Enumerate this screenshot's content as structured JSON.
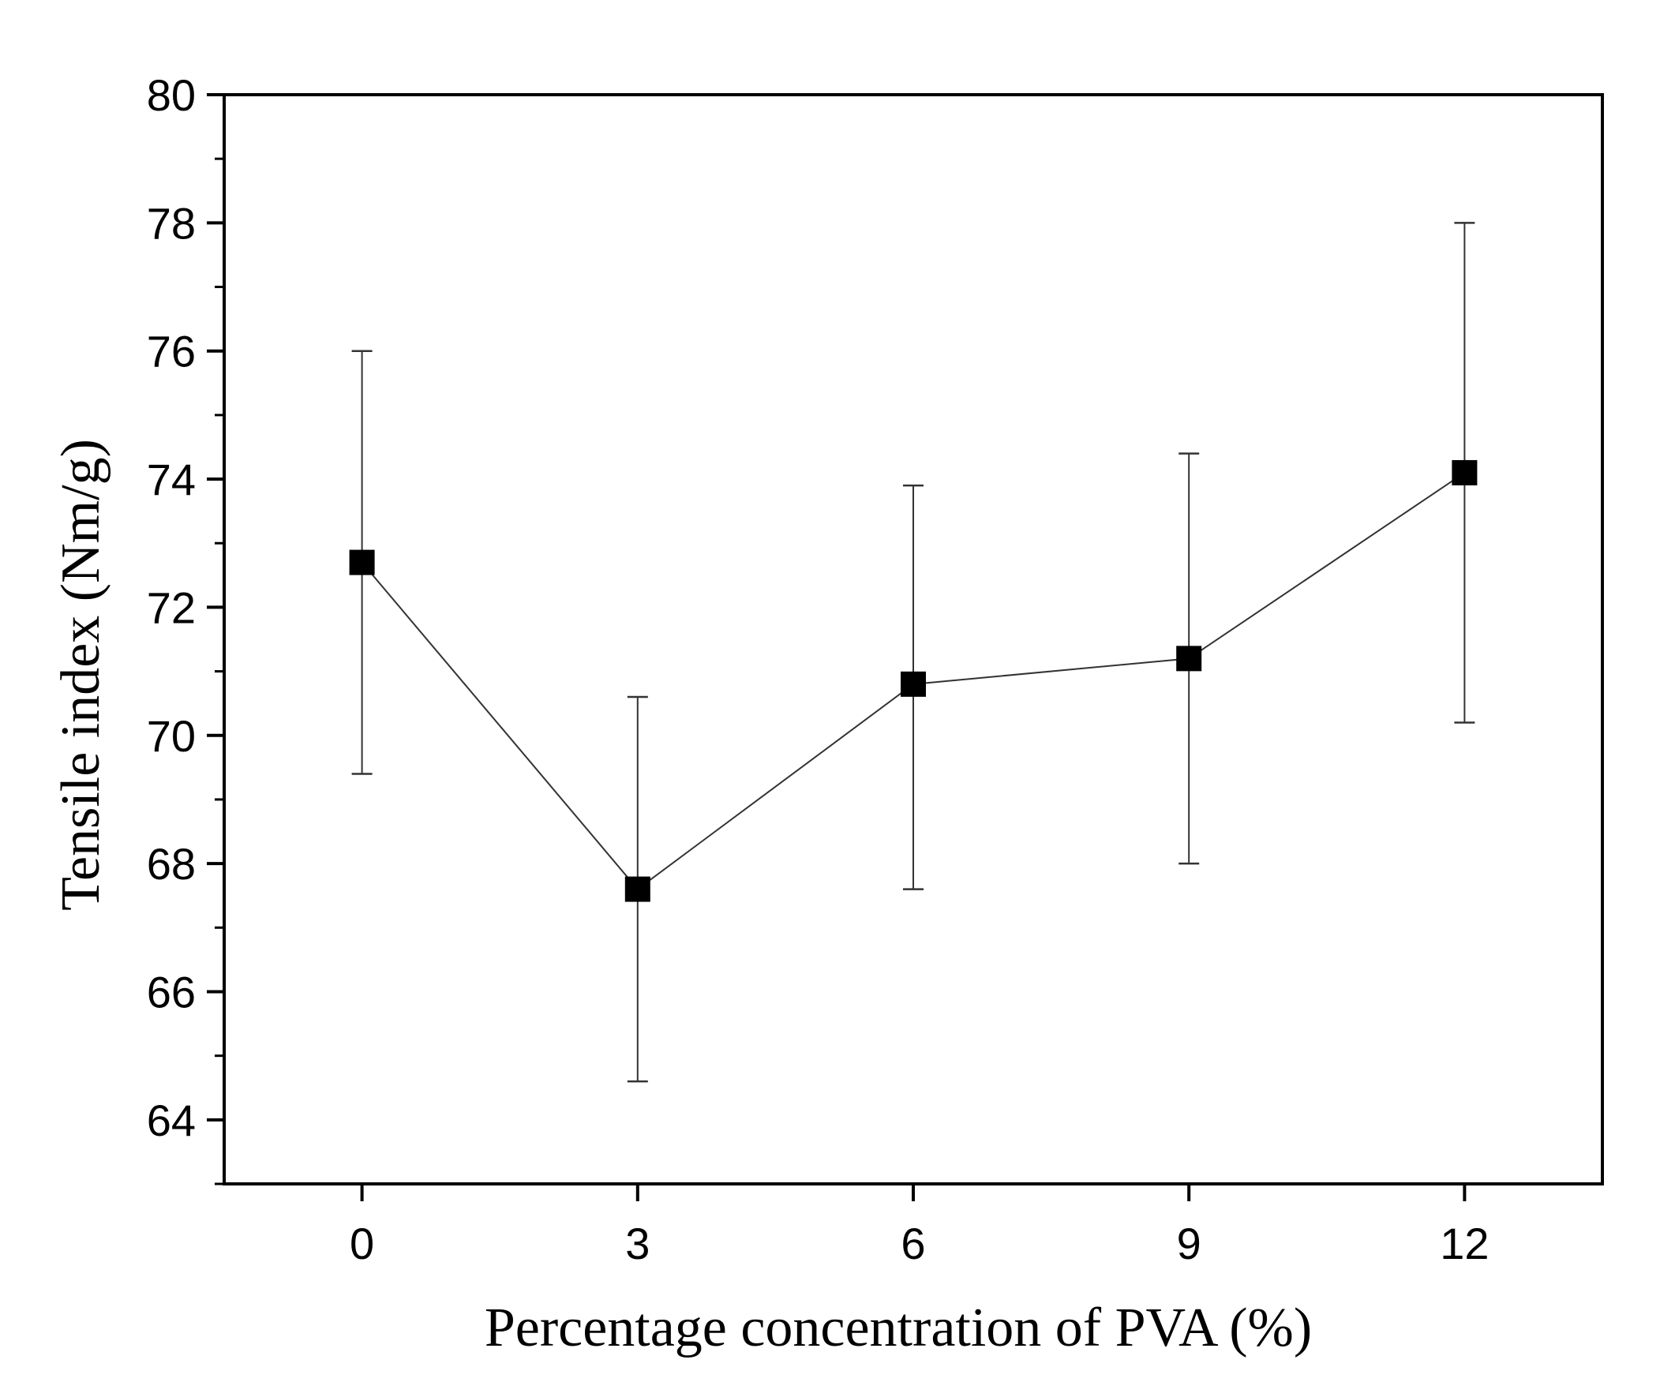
{
  "chart_data": {
    "type": "line",
    "title": "",
    "xlabel": "Percentage concentration of PVA (%)",
    "ylabel": "Tensile index (Nm/g)",
    "x": [
      0,
      3,
      6,
      9,
      12
    ],
    "series": [
      {
        "name": "Tensile index",
        "values": [
          72.7,
          67.6,
          70.8,
          71.2,
          74.1
        ],
        "error_low": [
          69.4,
          64.6,
          67.6,
          68.0,
          70.2
        ],
        "error_high": [
          76.0,
          70.6,
          73.9,
          74.4,
          78.0
        ],
        "marker": "square",
        "color": "#000000"
      }
    ],
    "xlim": [
      -1.5,
      13.5
    ],
    "ylim": [
      63,
      80
    ],
    "x_ticks": [
      0,
      3,
      6,
      9,
      12
    ],
    "x_tick_labels": [
      "0",
      "3",
      "6",
      "9",
      "12"
    ],
    "y_ticks": [
      64,
      66,
      68,
      70,
      72,
      74,
      76,
      78,
      80
    ],
    "y_tick_labels": [
      "64",
      "66",
      "68",
      "70",
      "72",
      "74",
      "76",
      "78",
      "80"
    ],
    "grid": false,
    "legend": "none"
  }
}
